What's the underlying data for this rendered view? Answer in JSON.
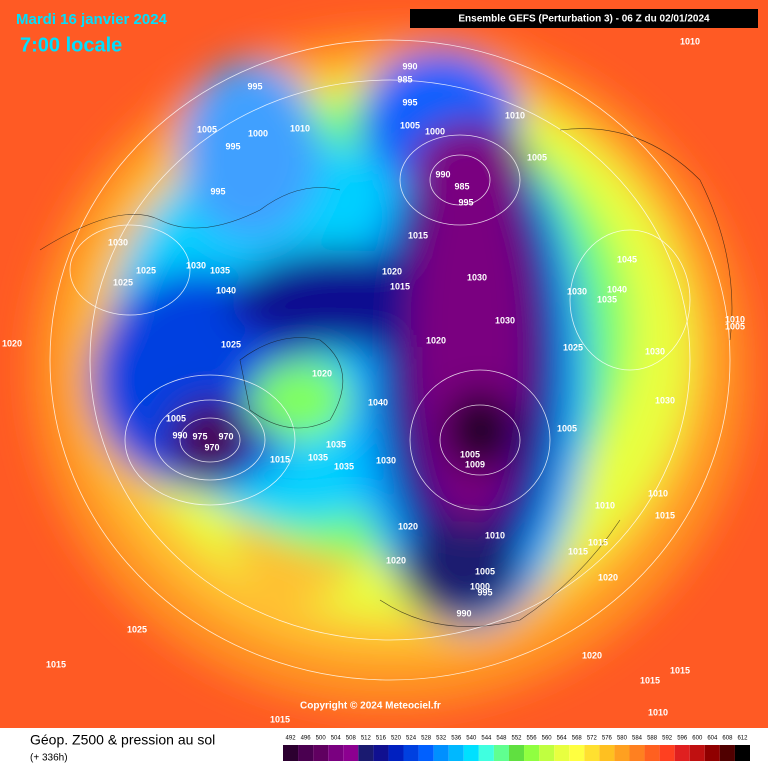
{
  "header": {
    "date": "Mardi 16 janvier 2024",
    "time": "7:00 locale",
    "run": "Ensemble GEFS  (Perturbation 3)  -  06 Z du 02/01/2024"
  },
  "map": {
    "pressure_labels": [
      1010,
      990,
      985,
      995,
      995,
      1005,
      1000,
      1010,
      995,
      995,
      1005,
      1000,
      1010,
      1005,
      990,
      985,
      995,
      1015,
      1030,
      1025,
      1025,
      1030,
      1035,
      1040,
      1020,
      1015,
      1030,
      1045,
      1030,
      1035,
      1040,
      1030,
      1020,
      1025,
      1030,
      1010,
      1005,
      1020,
      1025,
      1020,
      1040,
      1030,
      1005,
      1005,
      990,
      975,
      970,
      970,
      1005,
      1009,
      1035,
      1015,
      1035,
      1035,
      1030,
      1010,
      1010,
      1015,
      1020,
      1010,
      1015,
      1015,
      1020,
      1005,
      1000,
      995,
      1020,
      990,
      1025,
      1020,
      1015,
      1015,
      1015,
      1010,
      1015
    ],
    "copyright": "Copyright © 2024 Meteociel.fr"
  },
  "footer": {
    "title": "Géop. Z500 & pression au sol",
    "lead": "(+ 336h)",
    "scale_values": [
      492,
      496,
      500,
      504,
      508,
      512,
      516,
      520,
      524,
      528,
      532,
      536,
      540,
      544,
      548,
      552,
      556,
      560,
      564,
      568,
      572,
      576,
      580,
      584,
      588,
      592,
      596,
      600,
      604,
      608,
      612
    ],
    "scale_colors": [
      "#2c0030",
      "#4a0050",
      "#600060",
      "#7a0080",
      "#8c0090",
      "#1a1a70",
      "#101090",
      "#0020c0",
      "#0040e0",
      "#0060ff",
      "#0090ff",
      "#00b8ff",
      "#00e0ff",
      "#40ffe0",
      "#60ff90",
      "#60e040",
      "#90ff40",
      "#c0ff40",
      "#e8ff40",
      "#ffff40",
      "#ffe030",
      "#ffc020",
      "#ffa020",
      "#ff8020",
      "#ff6020",
      "#ff4020",
      "#e02020",
      "#c01010",
      "#900000",
      "#500000",
      "#000000"
    ]
  }
}
